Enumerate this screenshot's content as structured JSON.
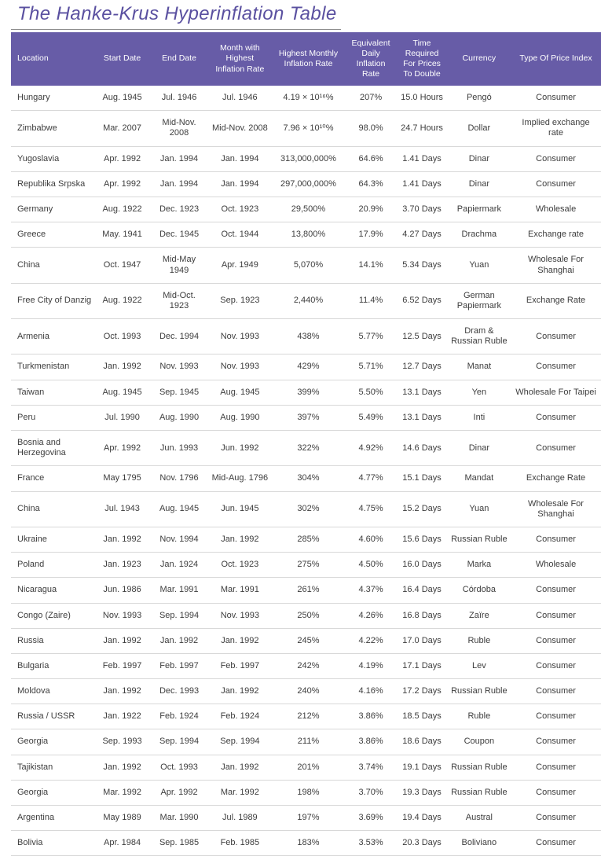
{
  "title": "The Hanke-Krus Hyperinflation Table",
  "colors": {
    "header_bg": "#675ca7",
    "title_text": "#5a50a0",
    "body_text": "#3d3d3d",
    "row_border": "#d8d8d8"
  },
  "chart_data": {
    "type": "table",
    "title": "The Hanke-Krus Hyperinflation Table",
    "columns": [
      "Location",
      "Start Date",
      "End Date",
      "Month with Highest Inflation Rate",
      "Highest Monthly Inflation Rate",
      "Equivalent Daily Inflation Rate",
      "Time Required For Prices To Double",
      "Currency",
      "Type Of Price Index"
    ],
    "rows": [
      [
        "Hungary",
        "Aug. 1945",
        "Jul. 1946",
        "Jul. 1946",
        "4.19 × 10¹⁶%",
        "207%",
        "15.0 Hours",
        "Pengó",
        "Consumer"
      ],
      [
        "Zimbabwe",
        "Mar. 2007",
        "Mid-Nov. 2008",
        "Mid-Nov. 2008",
        "7.96 × 10¹⁰%",
        "98.0%",
        "24.7 Hours",
        "Dollar",
        "Implied exchange rate"
      ],
      [
        "Yugoslavia",
        "Apr. 1992",
        "Jan. 1994",
        "Jan. 1994",
        "313,000,000%",
        "64.6%",
        "1.41 Days",
        "Dinar",
        "Consumer"
      ],
      [
        "Republika Srpska",
        "Apr. 1992",
        "Jan. 1994",
        "Jan. 1994",
        "297,000,000%",
        "64.3%",
        "1.41 Days",
        "Dinar",
        "Consumer"
      ],
      [
        "Germany",
        "Aug. 1922",
        "Dec. 1923",
        "Oct. 1923",
        "29,500%",
        "20.9%",
        "3.70 Days",
        "Papiermark",
        "Wholesale"
      ],
      [
        "Greece",
        "May. 1941",
        "Dec. 1945",
        "Oct. 1944",
        "13,800%",
        "17.9%",
        "4.27 Days",
        "Drachma",
        "Exchange rate"
      ],
      [
        "China",
        "Oct. 1947",
        "Mid-May 1949",
        "Apr. 1949",
        "5,070%",
        "14.1%",
        "5.34 Days",
        "Yuan",
        "Wholesale For Shanghai"
      ],
      [
        "Free City of Danzig",
        "Aug. 1922",
        "Mid-Oct. 1923",
        "Sep. 1923",
        "2,440%",
        "11.4%",
        "6.52 Days",
        "German Papiermark",
        "Exchange Rate"
      ],
      [
        "Armenia",
        "Oct. 1993",
        "Dec. 1994",
        "Nov. 1993",
        "438%",
        "5.77%",
        "12.5 Days",
        "Dram & Russian Ruble",
        "Consumer"
      ],
      [
        "Turkmenistan",
        "Jan. 1992",
        "Nov. 1993",
        "Nov. 1993",
        "429%",
        "5.71%",
        "12.7 Days",
        "Manat",
        "Consumer"
      ],
      [
        "Taiwan",
        "Aug. 1945",
        "Sep. 1945",
        "Aug. 1945",
        "399%",
        "5.50%",
        "13.1 Days",
        "Yen",
        "Wholesale For Taipei"
      ],
      [
        "Peru",
        "Jul. 1990",
        "Aug. 1990",
        "Aug. 1990",
        "397%",
        "5.49%",
        "13.1 Days",
        "Inti",
        "Consumer"
      ],
      [
        "Bosnia and Herzegovina",
        "Apr. 1992",
        "Jun. 1993",
        "Jun. 1992",
        "322%",
        "4.92%",
        "14.6 Days",
        "Dinar",
        "Consumer"
      ],
      [
        "France",
        "May 1795",
        "Nov. 1796",
        "Mid-Aug. 1796",
        "304%",
        "4.77%",
        "15.1 Days",
        "Mandat",
        "Exchange Rate"
      ],
      [
        "China",
        "Jul. 1943",
        "Aug. 1945",
        "Jun. 1945",
        "302%",
        "4.75%",
        "15.2 Days",
        "Yuan",
        "Wholesale For Shanghai"
      ],
      [
        "Ukraine",
        "Jan. 1992",
        "Nov. 1994",
        "Jan. 1992",
        "285%",
        "4.60%",
        "15.6 Days",
        "Russian Ruble",
        "Consumer"
      ],
      [
        "Poland",
        "Jan. 1923",
        "Jan. 1924",
        "Oct. 1923",
        "275%",
        "4.50%",
        "16.0 Days",
        "Marka",
        "Wholesale"
      ],
      [
        "Nicaragua",
        "Jun. 1986",
        "Mar. 1991",
        "Mar. 1991",
        "261%",
        "4.37%",
        "16.4 Days",
        "Córdoba",
        "Consumer"
      ],
      [
        "Congo (Zaire)",
        "Nov. 1993",
        "Sep. 1994",
        "Nov. 1993",
        "250%",
        "4.26%",
        "16.8 Days",
        "Zaïre",
        "Consumer"
      ],
      [
        "Russia",
        "Jan. 1992",
        "Jan. 1992",
        "Jan. 1992",
        "245%",
        "4.22%",
        "17.0 Days",
        "Ruble",
        "Consumer"
      ],
      [
        "Bulgaria",
        "Feb. 1997",
        "Feb. 1997",
        "Feb. 1997",
        "242%",
        "4.19%",
        "17.1 Days",
        "Lev",
        "Consumer"
      ],
      [
        "Moldova",
        "Jan. 1992",
        "Dec. 1993",
        "Jan. 1992",
        "240%",
        "4.16%",
        "17.2 Days",
        "Russian Ruble",
        "Consumer"
      ],
      [
        "Russia / USSR",
        "Jan. 1922",
        "Feb. 1924",
        "Feb. 1924",
        "212%",
        "3.86%",
        "18.5 Days",
        "Ruble",
        "Consumer"
      ],
      [
        "Georgia",
        "Sep. 1993",
        "Sep. 1994",
        "Sep. 1994",
        "211%",
        "3.86%",
        "18.6 Days",
        "Coupon",
        "Consumer"
      ],
      [
        "Tajikistan",
        "Jan. 1992",
        "Oct. 1993",
        "Jan. 1992",
        "201%",
        "3.74%",
        "19.1 Days",
        "Russian Ruble",
        "Consumer"
      ],
      [
        "Georgia",
        "Mar. 1992",
        "Apr. 1992",
        "Mar. 1992",
        "198%",
        "3.70%",
        "19.3 Days",
        "Russian Ruble",
        "Consumer"
      ],
      [
        "Argentina",
        "May 1989",
        "Mar. 1990",
        "Jul. 1989",
        "197%",
        "3.69%",
        "19.4 Days",
        "Austral",
        "Consumer"
      ],
      [
        "Bolivia",
        "Apr. 1984",
        "Sep. 1985",
        "Feb. 1985",
        "183%",
        "3.53%",
        "20.3 Days",
        "Boliviano",
        "Consumer"
      ]
    ]
  }
}
